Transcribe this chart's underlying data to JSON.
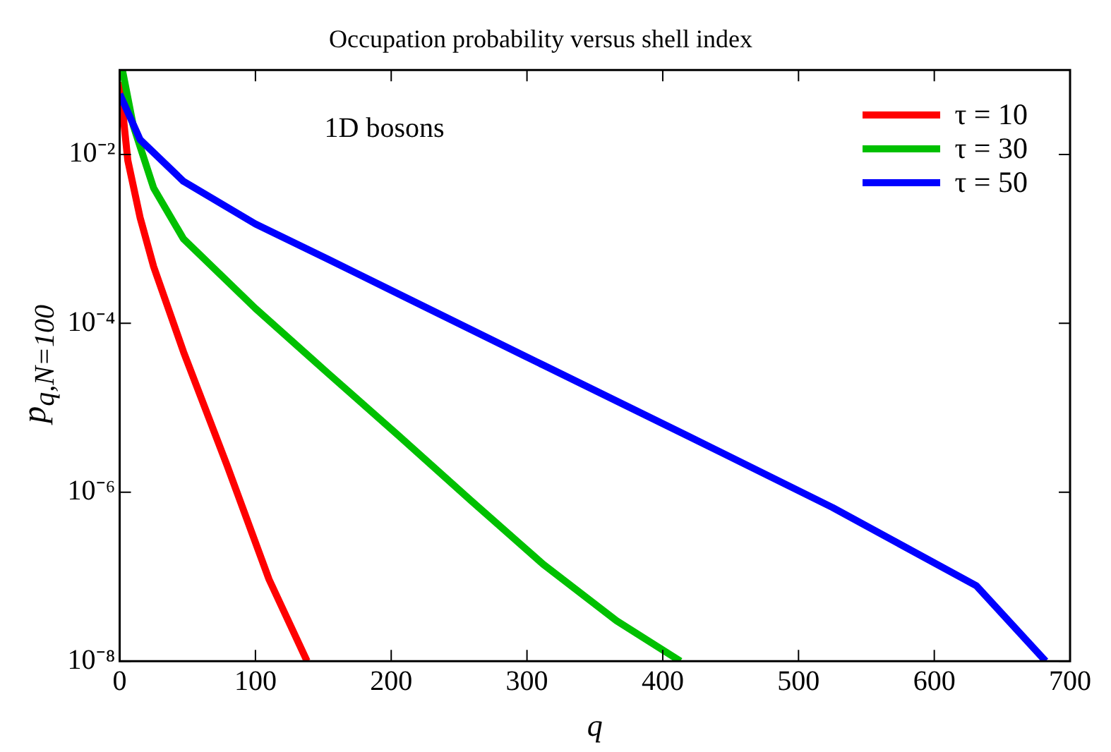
{
  "chart_data": {
    "type": "line",
    "title": "Occupation probability versus shell index",
    "xlabel": "q",
    "ylabel": "p$_{q,N=100}$",
    "annotations": [
      "1D bosons"
    ],
    "log": "y",
    "grid": false,
    "legend": "top right",
    "marker": "none",
    "line_style": "solid",
    "xlim": [
      0,
      700
    ],
    "xticks": [
      0,
      100,
      200,
      300,
      400,
      500,
      600,
      700
    ],
    "ylim": [
      1e-08,
      0.1
    ],
    "yticks": [
      {
        "value": 1e-08,
        "label": "10⁻⁸"
      },
      {
        "value": 1e-06,
        "label": "10⁻⁶"
      },
      {
        "value": 0.0001,
        "label": "10⁻⁴"
      },
      {
        "value": 0.01,
        "label": "10⁻²"
      }
    ],
    "series": [
      {
        "name": "τ = 10",
        "color": "#ff0000",
        "x": [
          0,
          6,
          15,
          25,
          47,
          79,
          110,
          138
        ],
        "values": [
          0.072,
          0.0085,
          0.0018,
          0.00047,
          4.6e-05,
          2.1e-06,
          9.3e-08,
          1e-08
        ]
      },
      {
        "name": "τ = 30",
        "color": "#00c000",
        "x": [
          2,
          10,
          25,
          47,
          100,
          153,
          206,
          259,
          312,
          366,
          413
        ],
        "values": [
          0.1,
          0.022,
          0.004,
          0.001,
          0.00015,
          2.6e-05,
          4.6e-06,
          7.9e-07,
          1.4e-07,
          3e-08,
          1e-08
        ]
      },
      {
        "name": "τ = 50",
        "color": "#0000ff",
        "x": [
          0,
          15,
          47,
          100,
          153,
          206,
          312,
          419,
          525,
          631,
          682
        ],
        "values": [
          0.052,
          0.015,
          0.0048,
          0.0015,
          0.00058,
          0.00022,
          3.2e-05,
          4.6e-06,
          6.6e-07,
          7.8e-08,
          1e-08
        ]
      }
    ]
  }
}
